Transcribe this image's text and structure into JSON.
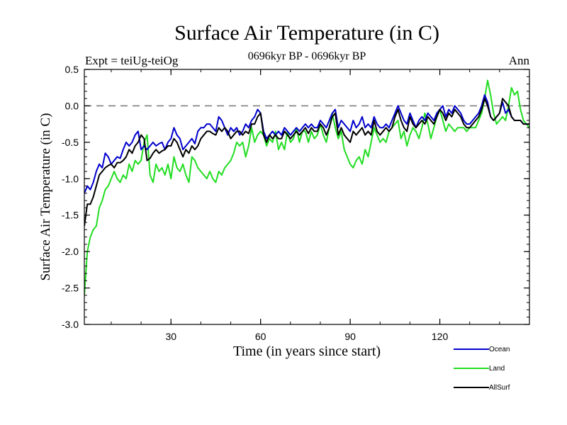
{
  "chart_data": {
    "type": "line",
    "title": "Surface Air Temperature (in C)",
    "subtitle": "0696kyr BP - 0696kyr BP",
    "left_label": "Expt = teiUg-teiOg",
    "right_label": "Ann",
    "xlabel": "Time (in years since start)",
    "ylabel": "Surface Air Temperature (in C)",
    "xlim": [
      1,
      150
    ],
    "ylim": [
      -3.0,
      0.5
    ],
    "x_ticks": [
      30,
      60,
      90,
      120
    ],
    "x_tick_labels": [
      "30",
      "60",
      "90",
      "120"
    ],
    "y_ticks": [
      0.5,
      0.0,
      -0.5,
      -1.0,
      -1.5,
      -2.0,
      -2.5,
      -3.0
    ],
    "y_tick_labels": [
      "0.5",
      "0.0",
      "-0.5",
      "-1.0",
      "-1.5",
      "-2.0",
      "-2.5",
      "-3.0"
    ],
    "reference_line": 0.0,
    "x": [
      1,
      2,
      3,
      4,
      5,
      6,
      7,
      8,
      9,
      10,
      11,
      12,
      13,
      14,
      15,
      16,
      17,
      18,
      19,
      20,
      21,
      22,
      23,
      24,
      25,
      26,
      27,
      28,
      29,
      30,
      31,
      32,
      33,
      34,
      35,
      36,
      37,
      38,
      39,
      40,
      41,
      42,
      43,
      44,
      45,
      46,
      47,
      48,
      49,
      50,
      51,
      52,
      53,
      54,
      55,
      56,
      57,
      58,
      59,
      60,
      61,
      62,
      63,
      64,
      65,
      66,
      67,
      68,
      69,
      70,
      71,
      72,
      73,
      74,
      75,
      76,
      77,
      78,
      79,
      80,
      81,
      82,
      83,
      84,
      85,
      86,
      87,
      88,
      89,
      90,
      91,
      92,
      93,
      94,
      95,
      96,
      97,
      98,
      99,
      100,
      101,
      102,
      103,
      104,
      105,
      106,
      107,
      108,
      109,
      110,
      111,
      112,
      113,
      114,
      115,
      116,
      117,
      118,
      119,
      120,
      121,
      122,
      123,
      124,
      125,
      126,
      127,
      128,
      129,
      130,
      131,
      132,
      133,
      134,
      135,
      136,
      137,
      138,
      139,
      140,
      141,
      142,
      143,
      144,
      145,
      146,
      147,
      148,
      149,
      150
    ],
    "series": [
      {
        "name": "Ocean",
        "color": "#0000cc",
        "values": [
          -1.2,
          -1.1,
          -1.15,
          -1.05,
          -0.9,
          -0.8,
          -0.85,
          -0.65,
          -0.7,
          -0.8,
          -0.75,
          -0.7,
          -0.72,
          -0.6,
          -0.5,
          -0.55,
          -0.5,
          -0.4,
          -0.35,
          -0.6,
          -0.55,
          -0.6,
          -0.55,
          -0.5,
          -0.55,
          -0.52,
          -0.5,
          -0.6,
          -0.5,
          -0.45,
          -0.3,
          -0.4,
          -0.45,
          -0.6,
          -0.55,
          -0.5,
          -0.45,
          -0.52,
          -0.35,
          -0.3,
          -0.3,
          -0.25,
          -0.25,
          -0.3,
          -0.35,
          -0.15,
          -0.2,
          -0.3,
          -0.4,
          -0.3,
          -0.35,
          -0.3,
          -0.4,
          -0.35,
          -0.25,
          -0.3,
          -0.2,
          -0.15,
          -0.05,
          -0.1,
          -0.35,
          -0.45,
          -0.4,
          -0.35,
          -0.4,
          -0.35,
          -0.4,
          -0.3,
          -0.35,
          -0.4,
          -0.35,
          -0.3,
          -0.35,
          -0.3,
          -0.25,
          -0.3,
          -0.25,
          -0.3,
          -0.3,
          -0.2,
          -0.25,
          -0.3,
          -0.2,
          -0.1,
          -0.05,
          -0.3,
          -0.2,
          -0.25,
          -0.3,
          -0.35,
          -0.2,
          -0.3,
          -0.25,
          -0.15,
          -0.3,
          -0.25,
          -0.3,
          -0.15,
          -0.25,
          -0.3,
          -0.3,
          -0.25,
          -0.3,
          -0.2,
          -0.1,
          0.0,
          -0.1,
          -0.2,
          -0.25,
          -0.1,
          -0.2,
          -0.3,
          -0.2,
          -0.15,
          -0.2,
          -0.1,
          -0.15,
          -0.2,
          -0.1,
          -0.05,
          0.0,
          -0.15,
          -0.05,
          -0.1,
          0.0,
          -0.05,
          -0.1,
          -0.2,
          -0.25,
          -0.25,
          -0.2,
          -0.15,
          -0.1,
          0.0,
          0.15,
          0.05,
          -0.15,
          -0.2,
          -0.15,
          -0.1,
          0.05,
          -0.1,
          -0.05,
          -0.15,
          -0.2,
          -0.2,
          -0.2,
          -0.25,
          -0.25,
          -0.25
        ]
      },
      {
        "name": "Land",
        "color": "#22dd22",
        "values": [
          -2.6,
          -2.0,
          -1.8,
          -1.7,
          -1.65,
          -1.4,
          -1.3,
          -1.15,
          -1.1,
          -1.0,
          -0.9,
          -1.0,
          -1.05,
          -0.95,
          -1.0,
          -0.8,
          -0.9,
          -0.75,
          -0.8,
          -0.75,
          -0.5,
          -0.4,
          -0.95,
          -1.05,
          -0.8,
          -0.9,
          -0.85,
          -0.95,
          -0.8,
          -1.0,
          -0.7,
          -0.85,
          -0.9,
          -0.8,
          -0.95,
          -1.05,
          -0.7,
          -0.75,
          -0.85,
          -0.9,
          -0.95,
          -1.0,
          -0.9,
          -1.0,
          -1.05,
          -0.9,
          -0.95,
          -0.85,
          -0.8,
          -0.75,
          -0.65,
          -0.5,
          -0.55,
          -0.5,
          -0.7,
          -0.55,
          -0.3,
          -0.5,
          -0.4,
          -0.35,
          -0.4,
          -0.55,
          -0.45,
          -0.5,
          -0.35,
          -0.6,
          -0.5,
          -0.6,
          -0.35,
          -0.5,
          -0.45,
          -0.3,
          -0.5,
          -0.35,
          -0.35,
          -0.5,
          -0.35,
          -0.45,
          -0.4,
          -0.25,
          -0.4,
          -0.5,
          -0.3,
          -0.1,
          -0.3,
          -0.45,
          -0.35,
          -0.6,
          -0.7,
          -0.8,
          -0.85,
          -0.75,
          -0.7,
          -0.8,
          -0.6,
          -0.7,
          -0.5,
          -0.3,
          -0.4,
          -0.5,
          -0.45,
          -0.5,
          -0.35,
          -0.3,
          -0.25,
          -0.2,
          -0.45,
          -0.35,
          -0.55,
          -0.4,
          -0.3,
          -0.35,
          -0.45,
          -0.3,
          -0.1,
          -0.25,
          -0.45,
          -0.3,
          -0.15,
          -0.05,
          -0.2,
          -0.35,
          -0.25,
          -0.3,
          -0.35,
          -0.3,
          -0.3,
          -0.3,
          -0.35,
          -0.3,
          -0.3,
          -0.3,
          -0.2,
          -0.1,
          0.1,
          0.35,
          0.15,
          -0.1,
          -0.25,
          -0.2,
          -0.15,
          -0.2,
          0.0,
          0.25,
          0.15,
          0.2,
          -0.05,
          -0.2,
          -0.25,
          -0.3
        ]
      },
      {
        "name": "AllSurf",
        "color": "#000000",
        "values": [
          -1.65,
          -1.35,
          -1.35,
          -1.25,
          -1.1,
          -0.95,
          -0.9,
          -0.85,
          -0.82,
          -0.8,
          -0.85,
          -0.78,
          -0.78,
          -0.75,
          -0.7,
          -0.6,
          -0.65,
          -0.55,
          -0.5,
          -0.4,
          -0.45,
          -0.75,
          -0.72,
          -0.65,
          -0.6,
          -0.65,
          -0.62,
          -0.6,
          -0.55,
          -0.55,
          -0.45,
          -0.5,
          -0.6,
          -0.7,
          -0.6,
          -0.65,
          -0.55,
          -0.6,
          -0.55,
          -0.45,
          -0.4,
          -0.35,
          -0.35,
          -0.38,
          -0.4,
          -0.3,
          -0.35,
          -0.3,
          -0.35,
          -0.45,
          -0.4,
          -0.35,
          -0.35,
          -0.4,
          -0.35,
          -0.38,
          -0.25,
          -0.25,
          -0.15,
          -0.1,
          -0.4,
          -0.5,
          -0.4,
          -0.45,
          -0.4,
          -0.45,
          -0.45,
          -0.35,
          -0.4,
          -0.45,
          -0.4,
          -0.35,
          -0.4,
          -0.35,
          -0.3,
          -0.38,
          -0.3,
          -0.35,
          -0.35,
          -0.25,
          -0.3,
          -0.4,
          -0.3,
          -0.15,
          -0.1,
          -0.4,
          -0.3,
          -0.4,
          -0.45,
          -0.5,
          -0.35,
          -0.4,
          -0.35,
          -0.3,
          -0.4,
          -0.35,
          -0.4,
          -0.2,
          -0.35,
          -0.4,
          -0.35,
          -0.3,
          -0.35,
          -0.3,
          -0.15,
          -0.05,
          -0.2,
          -0.3,
          -0.35,
          -0.15,
          -0.25,
          -0.3,
          -0.25,
          -0.2,
          -0.25,
          -0.15,
          -0.2,
          -0.25,
          -0.15,
          -0.05,
          -0.1,
          -0.2,
          -0.1,
          -0.15,
          -0.05,
          -0.1,
          -0.15,
          -0.25,
          -0.3,
          -0.3,
          -0.25,
          -0.2,
          -0.15,
          -0.05,
          0.1,
          0.0,
          -0.15,
          -0.2,
          -0.15,
          -0.1,
          0.1,
          0.05,
          0.0,
          -0.15,
          -0.2,
          -0.2,
          -0.2,
          -0.25,
          -0.25,
          -0.25
        ]
      }
    ]
  }
}
